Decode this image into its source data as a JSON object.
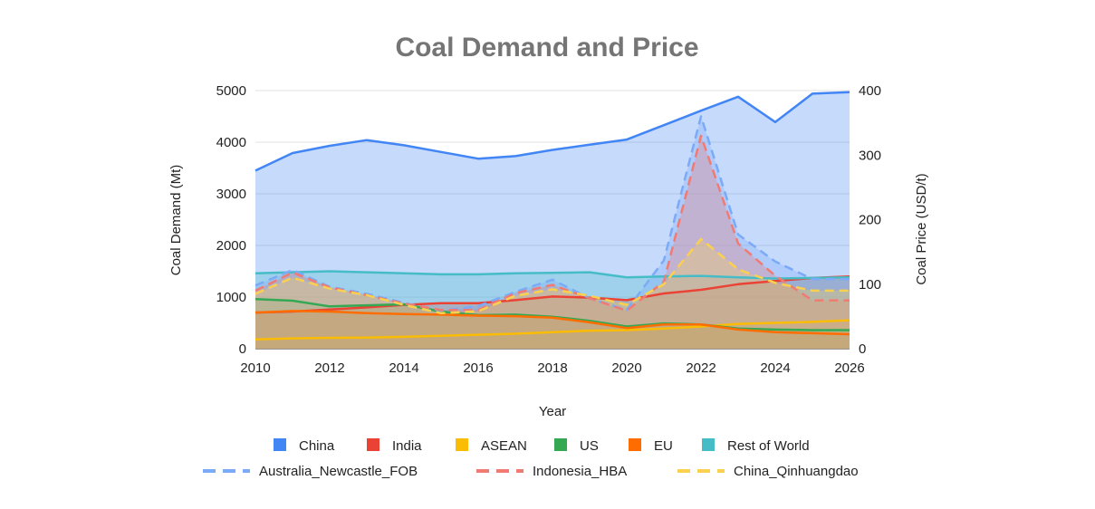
{
  "chart_data": {
    "type": "area",
    "title": "Coal Demand and Price",
    "xlabel": "Year",
    "ylabel_left": "Coal Demand (Mt)",
    "ylabel_right": "Coal Price (USD/t)",
    "xlim": [
      2010,
      2026
    ],
    "x_ticks": [
      2010,
      2012,
      2014,
      2016,
      2018,
      2020,
      2022,
      2024,
      2026
    ],
    "ylim_left": [
      0,
      5000
    ],
    "y_ticks_left": [
      0,
      1000,
      2000,
      3000,
      4000,
      5000
    ],
    "ylim_right": [
      0,
      400
    ],
    "y_ticks_right": [
      0,
      100,
      200,
      300,
      400
    ],
    "grid": true,
    "legend_position": "bottom",
    "x": [
      2010,
      2011,
      2012,
      2013,
      2014,
      2015,
      2016,
      2017,
      2018,
      2019,
      2020,
      2021,
      2022,
      2023,
      2024,
      2025,
      2026
    ],
    "series": [
      {
        "name": "China",
        "axis": "left",
        "style": "area",
        "color": "#4285f4",
        "values": [
          3450,
          3790,
          3930,
          4040,
          3940,
          3810,
          3680,
          3730,
          3850,
          3950,
          4050,
          4330,
          4610,
          4880,
          4390,
          4940,
          4970
        ]
      },
      {
        "name": "India",
        "axis": "left",
        "style": "area",
        "color": "#ea4335",
        "values": [
          700,
          720,
          760,
          800,
          850,
          880,
          880,
          940,
          1010,
          990,
          940,
          1070,
          1140,
          1250,
          1310,
          1370,
          1400
        ]
      },
      {
        "name": "ASEAN",
        "axis": "left",
        "style": "area",
        "color": "#fbbc04",
        "values": [
          180,
          200,
          210,
          215,
          230,
          250,
          270,
          290,
          320,
          350,
          360,
          390,
          430,
          480,
          500,
          520,
          550
        ]
      },
      {
        "name": "US",
        "axis": "left",
        "style": "area",
        "color": "#34a853",
        "values": [
          960,
          930,
          820,
          840,
          860,
          720,
          650,
          660,
          620,
          540,
          430,
          490,
          470,
          390,
          370,
          360,
          360
        ]
      },
      {
        "name": "EU",
        "axis": "left",
        "style": "area",
        "color": "#ff6d01",
        "values": [
          700,
          730,
          720,
          690,
          670,
          660,
          640,
          630,
          600,
          510,
          400,
          470,
          470,
          370,
          320,
          300,
          280
        ]
      },
      {
        "name": "Rest of World",
        "axis": "left",
        "style": "area",
        "color": "#46bdc6",
        "values": [
          1460,
          1480,
          1500,
          1480,
          1460,
          1440,
          1440,
          1460,
          1470,
          1480,
          1380,
          1400,
          1410,
          1380,
          1360,
          1370,
          1380
        ]
      },
      {
        "name": "Australia_Newcastle_FOB",
        "axis": "right",
        "style": "dashed-area",
        "color": "#7baaf7",
        "values": [
          98,
          122,
          96,
          85,
          71,
          59,
          66,
          88,
          107,
          78,
          60,
          137,
          360,
          177,
          135,
          108,
          108
        ]
      },
      {
        "name": "Indonesia_HBA",
        "axis": "right",
        "style": "dashed-area",
        "color": "#f07b72",
        "values": [
          90,
          118,
          95,
          83,
          70,
          60,
          60,
          86,
          99,
          78,
          59,
          104,
          330,
          163,
          113,
          75,
          75
        ]
      },
      {
        "name": "China_Qinhuangdao",
        "axis": "right",
        "style": "dashed-area",
        "color": "#fcd04f",
        "values": [
          85,
          110,
          93,
          83,
          68,
          55,
          58,
          82,
          92,
          82,
          68,
          100,
          170,
          123,
          102,
          90,
          90
        ]
      }
    ]
  }
}
